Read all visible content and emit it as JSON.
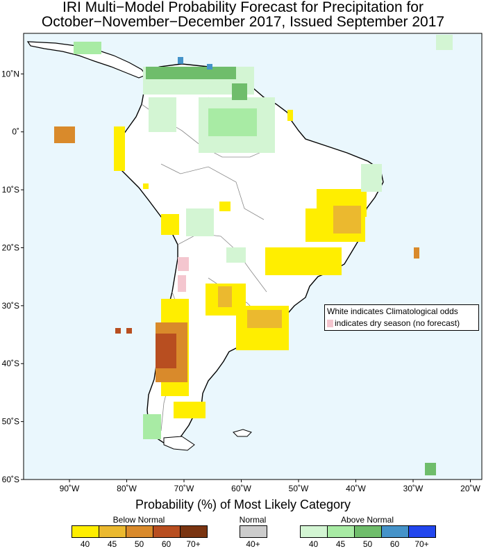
{
  "title": {
    "line1": "IRI Multi−Model Probability Forecast for Precipitation for",
    "line2": "October−November−December 2017, Issued September 2017"
  },
  "axes": {
    "lat_labels": [
      "10˚N",
      "0˚",
      "10˚S",
      "20˚S",
      "30˚S",
      "40˚S",
      "50˚S",
      "60˚S"
    ],
    "lat_values": [
      10,
      0,
      -10,
      -20,
      -30,
      -40,
      -50,
      -60
    ],
    "lon_labels": [
      "90˚W",
      "80˚W",
      "70˚W",
      "60˚W",
      "50˚W",
      "40˚W",
      "30˚W",
      "20˚W"
    ],
    "lon_values": [
      -90,
      -80,
      -70,
      -60,
      -50,
      -40,
      -30,
      -20
    ],
    "lat_range": [
      -60,
      17
    ],
    "lon_range": [
      -98,
      -18
    ]
  },
  "note": {
    "line1": "White indicates Climatological odds",
    "line2": "indicates dry season (no forecast)"
  },
  "legend": {
    "title": "Probability (%) of Most Likely Category",
    "below_label": "Below Normal",
    "normal_label": "Normal",
    "above_label": "Above Normal",
    "below": [
      {
        "label": "40",
        "color": "#ffee00"
      },
      {
        "label": "45",
        "color": "#ebb92f"
      },
      {
        "label": "50",
        "color": "#d98a2b"
      },
      {
        "label": "60",
        "color": "#b84e20"
      },
      {
        "label": "70+",
        "color": "#7a3411"
      }
    ],
    "normal": [
      {
        "label": "40+",
        "color": "#cccccc"
      }
    ],
    "above": [
      {
        "label": "40",
        "color": "#d3f5d3"
      },
      {
        "label": "45",
        "color": "#a8eba4"
      },
      {
        "label": "50",
        "color": "#6fbd6b"
      },
      {
        "label": "60",
        "color": "#4593c9"
      },
      {
        "label": "70+",
        "color": "#2246ee"
      }
    ]
  },
  "colors": {
    "ocean": "#eaf7fd",
    "land": "#ffffff",
    "dry_season": "#f4c6cf"
  }
}
